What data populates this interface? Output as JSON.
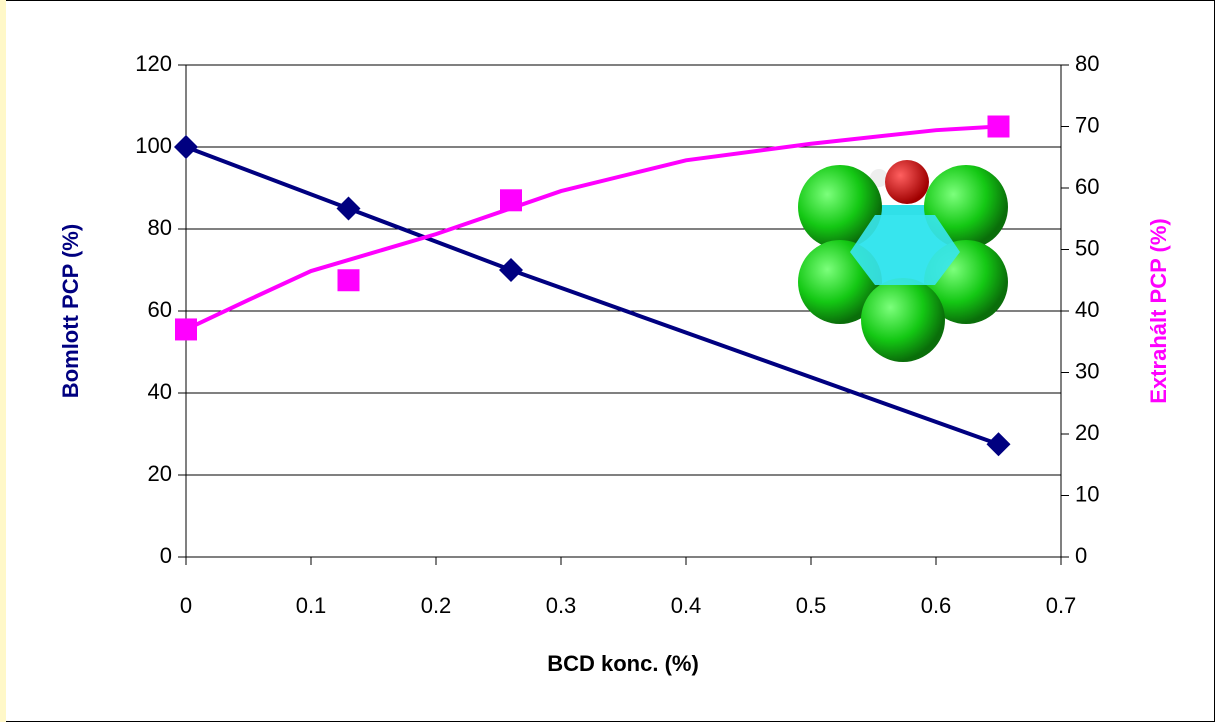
{
  "chart_data": {
    "type": "line",
    "x_label": "BCD konc. (%)",
    "y_label": "Bomlott PCP (%)",
    "y2_label": "Extrahált PCP (%)",
    "xlim": [
      0,
      0.7
    ],
    "xticks": [
      0,
      0.1,
      0.2,
      0.3,
      0.4,
      0.5,
      0.6,
      0.7
    ],
    "ylim": [
      0,
      120
    ],
    "yticks": [
      0,
      20,
      40,
      60,
      80,
      100,
      120
    ],
    "y2lim": [
      0,
      80
    ],
    "y2ticks": [
      0,
      10,
      20,
      30,
      40,
      50,
      60,
      70,
      80
    ],
    "grid": true,
    "series": [
      {
        "color": "#000080",
        "marker": "diamond",
        "x": [
          0,
          0.13,
          0.26,
          0.65
        ],
        "values": [
          100,
          85,
          70,
          27.5
        ]
      },
      {
        "color": "#ff00ff",
        "marker": "square",
        "axis": "y2",
        "line": false,
        "x": [
          0,
          0.13,
          0.26,
          0.65
        ],
        "values": [
          37,
          45,
          58,
          70
        ]
      },
      {
        "color": "#ff00ff",
        "marker": "none",
        "axis": "y2",
        "x": [
          0,
          0.05,
          0.1,
          0.2,
          0.3,
          0.4,
          0.5,
          0.6,
          0.65
        ],
        "values": [
          37,
          41.8,
          46.5,
          52.5,
          59.5,
          64.5,
          67.2,
          69.4,
          70
        ]
      }
    ]
  }
}
